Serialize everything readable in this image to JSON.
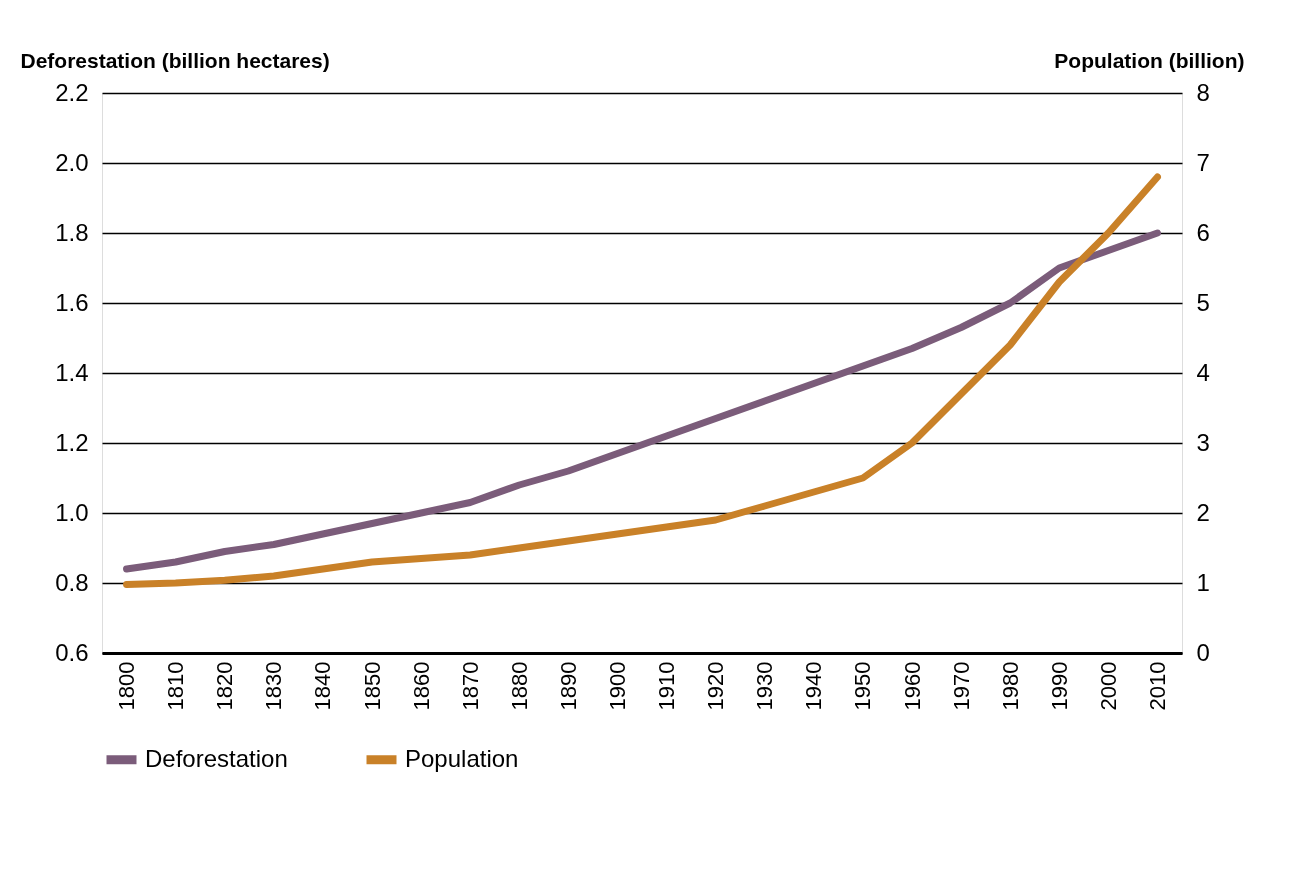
{
  "chart_data": {
    "type": "line",
    "ylabel": "Deforestation (billion hectares)",
    "y2label": "Population (billion)",
    "categories": [
      "1800",
      "1810",
      "1820",
      "1830",
      "1840",
      "1850",
      "1860",
      "1870",
      "1880",
      "1890",
      "1900",
      "1910",
      "1920",
      "1930",
      "1940",
      "1950",
      "1960",
      "1970",
      "1980",
      "1990",
      "2000",
      "2010"
    ],
    "series": [
      {
        "name": "Deforestation",
        "color": "#7b5c7a",
        "values": [
          0.84,
          0.86,
          0.89,
          0.91,
          0.94,
          0.97,
          1.0,
          1.03,
          1.08,
          1.12,
          1.17,
          1.22,
          1.27,
          1.32,
          1.37,
          1.42,
          1.47,
          1.53,
          1.6,
          1.7,
          1.75,
          1.8
        ]
      },
      {
        "name": "Population",
        "color": "#c98128",
        "axis": "y2",
        "values": [
          0.98,
          1.0,
          1.04,
          1.1,
          1.2,
          1.3,
          1.35,
          1.4,
          1.5,
          1.6,
          1.7,
          1.8,
          1.9,
          2.1,
          2.3,
          2.5,
          3.0,
          3.7,
          4.4,
          5.3,
          6.0,
          6.8
        ]
      }
    ],
    "ylim": [
      0.6,
      2.2
    ],
    "yticks": [
      0.6,
      0.8,
      {
        "value": 1,
        "label": "1.0"
      },
      1.2,
      1.4,
      1.6,
      1.8,
      {
        "value": 2,
        "label": "2.0"
      },
      2.2
    ],
    "y2lim": [
      0,
      8
    ],
    "y2ticks": [
      0,
      1,
      2,
      3,
      4,
      5,
      6,
      7,
      8
    ],
    "grid": "y",
    "legend": "bottom",
    "line_style": "solid"
  }
}
